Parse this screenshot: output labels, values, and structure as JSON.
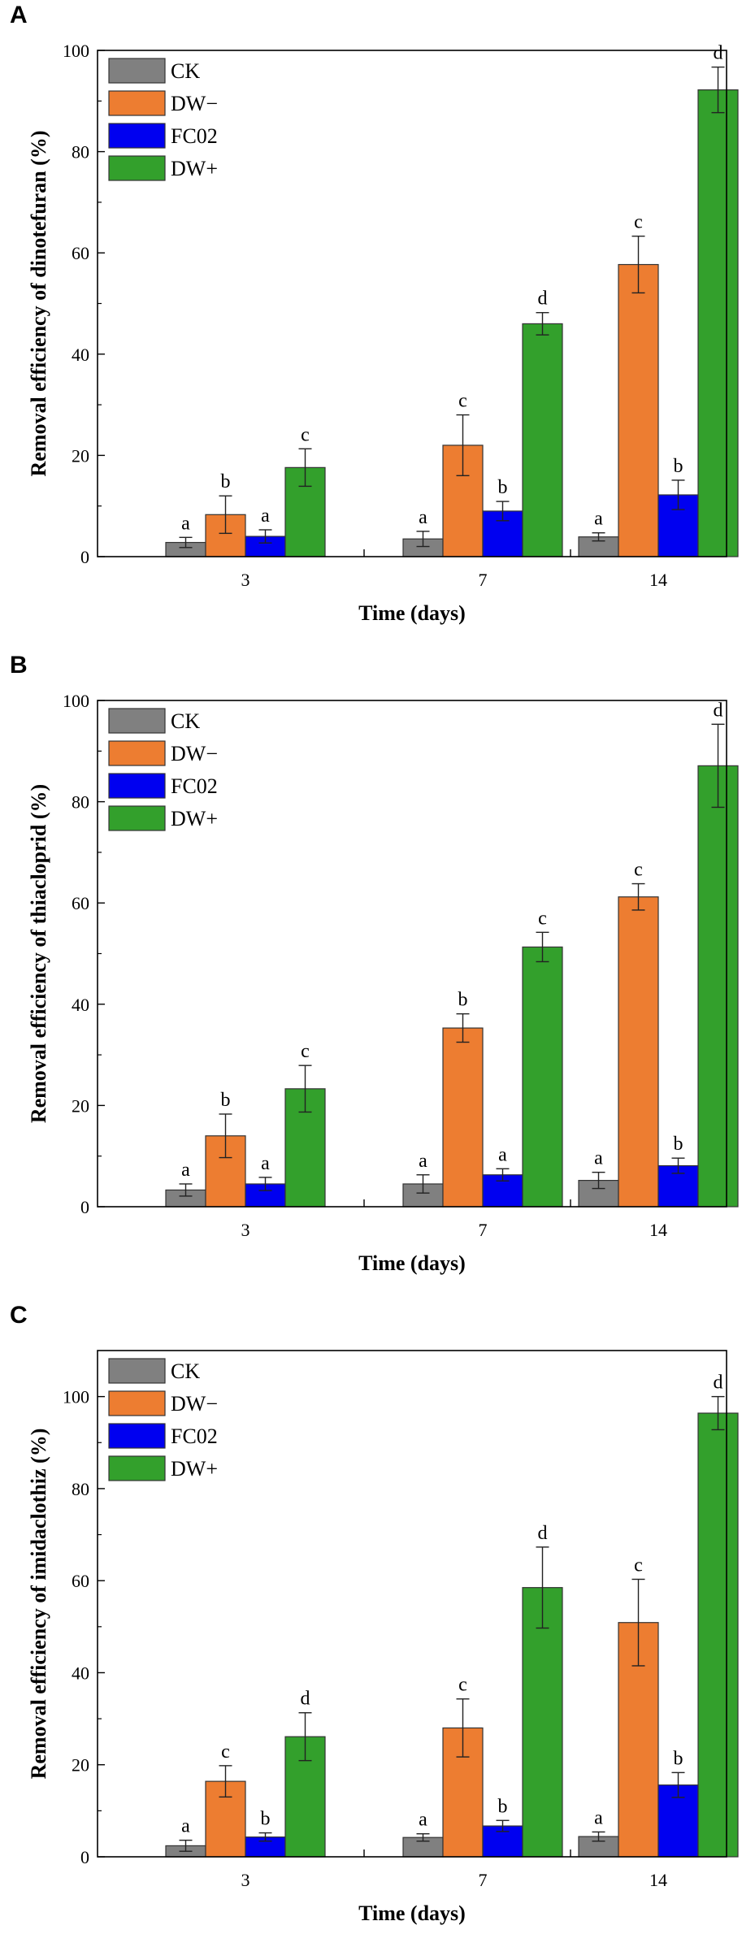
{
  "colors": {
    "CK": "#808080",
    "DW−": "#ED7D31",
    "FC02": "#0000F0",
    "DW+": "#33A02C"
  },
  "chart_data": [
    {
      "type": "bar",
      "panel": "A",
      "categories": [
        "3",
        "7",
        "14"
      ],
      "series": [
        {
          "name": "CK",
          "values": [
            2.8,
            3.5,
            3.9
          ],
          "errors": [
            1.0,
            1.5,
            0.8
          ],
          "letters": [
            "a",
            "a",
            "a"
          ]
        },
        {
          "name": "DW−",
          "values": [
            8.3,
            22.0,
            57.7
          ],
          "errors": [
            3.7,
            6.0,
            5.6
          ],
          "letters": [
            "b",
            "c",
            "c"
          ]
        },
        {
          "name": "FC02",
          "values": [
            4.0,
            9.0,
            12.2
          ],
          "errors": [
            1.3,
            1.9,
            2.9
          ],
          "letters": [
            "a",
            "b",
            "b"
          ]
        },
        {
          "name": "DW+",
          "values": [
            17.6,
            46.0,
            92.2
          ],
          "errors": [
            3.7,
            2.2,
            4.5
          ],
          "letters": [
            "c",
            "d",
            "d"
          ]
        }
      ],
      "title": "",
      "xlabel": "Time (days)",
      "ylabel": "Removal efficiency of dinotefuran (%)",
      "ylim": [
        0,
        100
      ],
      "yticks": [
        "0",
        "20",
        "40",
        "60",
        "80",
        "100"
      ],
      "legend": "top-left"
    },
    {
      "type": "bar",
      "panel": "B",
      "categories": [
        "3",
        "7",
        "14"
      ],
      "series": [
        {
          "name": "CK",
          "values": [
            3.3,
            4.5,
            5.2
          ],
          "errors": [
            1.2,
            1.8,
            1.6
          ],
          "letters": [
            "a",
            "a",
            "a"
          ]
        },
        {
          "name": "DW−",
          "values": [
            14.0,
            35.3,
            61.2
          ],
          "errors": [
            4.3,
            2.8,
            2.6
          ],
          "letters": [
            "b",
            "b",
            "c"
          ]
        },
        {
          "name": "FC02",
          "values": [
            4.5,
            6.3,
            8.1
          ],
          "errors": [
            1.3,
            1.2,
            1.5
          ],
          "letters": [
            "a",
            "a",
            "b"
          ]
        },
        {
          "name": "DW+",
          "values": [
            23.3,
            51.3,
            87.1
          ],
          "errors": [
            4.6,
            2.9,
            8.2
          ],
          "letters": [
            "c",
            "c",
            "d"
          ]
        }
      ],
      "title": "",
      "xlabel": "Time (days)",
      "ylabel": "Removal efficiency of thiacloprid (%)",
      "ylim": [
        0,
        100
      ],
      "yticks": [
        "0",
        "20",
        "40",
        "60",
        "80",
        "100"
      ],
      "legend": "top-left"
    },
    {
      "type": "bar",
      "panel": "C",
      "categories": [
        "3",
        "7",
        "14"
      ],
      "series": [
        {
          "name": "CK",
          "values": [
            2.4,
            4.2,
            4.4
          ],
          "errors": [
            1.2,
            0.8,
            1.0
          ],
          "letters": [
            "a",
            "a",
            "a"
          ]
        },
        {
          "name": "DW−",
          "values": [
            16.4,
            28.0,
            50.9
          ],
          "errors": [
            3.4,
            6.3,
            9.4
          ],
          "letters": [
            "c",
            "c",
            "c"
          ]
        },
        {
          "name": "FC02",
          "values": [
            4.3,
            6.7,
            15.6
          ],
          "errors": [
            0.9,
            1.2,
            2.7
          ],
          "letters": [
            "b",
            "b",
            "b"
          ]
        },
        {
          "name": "DW+",
          "values": [
            26.1,
            58.5,
            96.4
          ],
          "errors": [
            5.2,
            8.8,
            3.6
          ],
          "letters": [
            "d",
            "d",
            "d"
          ]
        }
      ],
      "title": "",
      "xlabel": "Time (days)",
      "ylabel": "Removal efficiency of imidaclothiz (%)",
      "ylim": [
        0,
        110
      ],
      "yticks": [
        "0",
        "20",
        "40",
        "60",
        "80",
        "100"
      ],
      "legend": "top-left"
    }
  ]
}
